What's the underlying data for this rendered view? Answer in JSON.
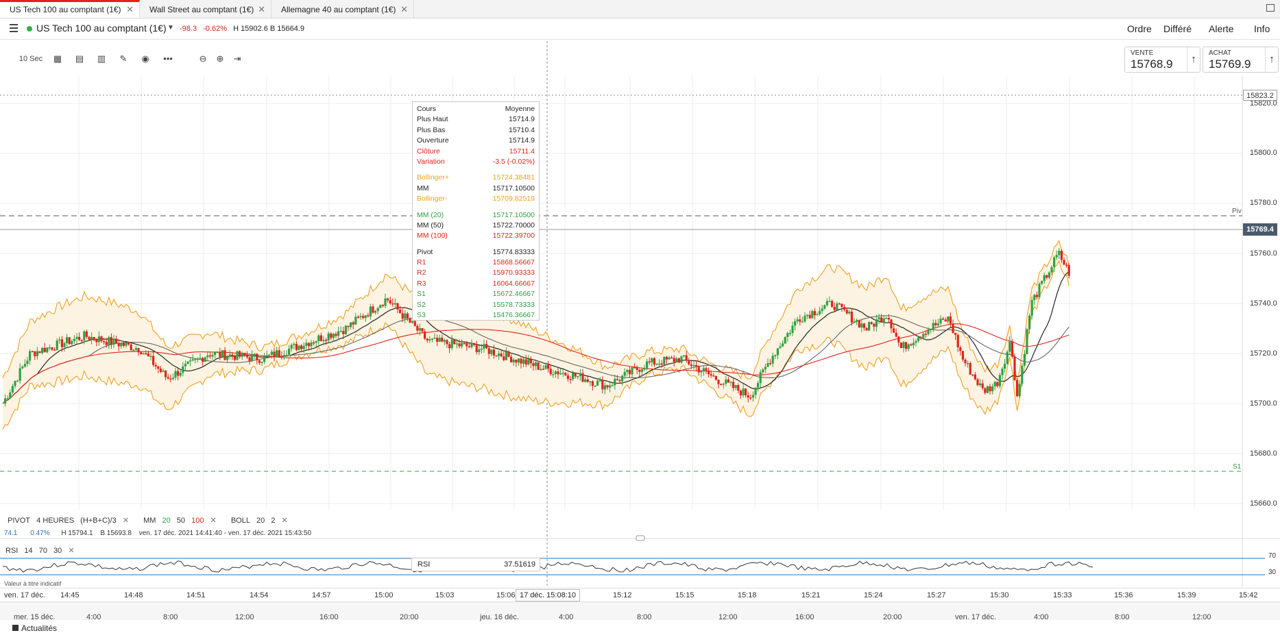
{
  "tabs": [
    {
      "label": "US Tech 100 au comptant (1€)",
      "active": true
    },
    {
      "label": "Wall Street au comptant (1€)",
      "active": false
    },
    {
      "label": "Allemagne 40 au comptant (1€)",
      "active": false
    }
  ],
  "header": {
    "instrument": "US Tech 100 au comptant (1€)",
    "change": "-98.3",
    "change_pct": "-0.62%",
    "high": "H 15902.6",
    "low": "B 15664.9",
    "menu": [
      "Ordre",
      "Différé",
      "Alerte",
      "Info"
    ]
  },
  "toolbar": {
    "interval": "10 Sec"
  },
  "trade": {
    "sell_label": "VENTE",
    "sell_price": "15768.9",
    "buy_label": "ACHAT",
    "buy_price": "15769.9"
  },
  "tooltip": {
    "head_left": "Cours",
    "head_right": "Moyenne",
    "rows": [
      {
        "k": "Plus Haut",
        "v": "15714.9"
      },
      {
        "k": "Plus Bas",
        "v": "15710.4"
      },
      {
        "k": "Ouverture",
        "v": "15714.9"
      },
      {
        "k": "Clôture",
        "v": "15711.4"
      },
      {
        "k": "Variation",
        "v": "-3.5 (-0.02%)"
      },
      {
        "k": "Bollinger+",
        "v": "15724.38481"
      },
      {
        "k": "MM",
        "v": "15717.10500"
      },
      {
        "k": "Bollinger-",
        "v": "15709.82519"
      },
      {
        "k": "MM (20)",
        "v": "15717.10500"
      },
      {
        "k": "MM (50)",
        "v": "15722.70000"
      },
      {
        "k": "MM (100)",
        "v": "15722.39700"
      },
      {
        "k": "Pivot",
        "v": "15774.83333"
      },
      {
        "k": "R1",
        "v": "15868.56667"
      },
      {
        "k": "R2",
        "v": "15970.93333"
      },
      {
        "k": "R3",
        "v": "16064.66667"
      },
      {
        "k": "S1",
        "v": "15672.46667"
      },
      {
        "k": "S2",
        "v": "15578.73333"
      },
      {
        "k": "S3",
        "v": "15476.36667"
      }
    ]
  },
  "price_axis": {
    "labels": [
      "15820.0",
      "15800.0",
      "15780.0",
      "15760.0",
      "15740.0",
      "15720.0",
      "15700.0",
      "15680.0",
      "15660.0"
    ],
    "current": "15769.4",
    "marker": "15823.2",
    "pivot_label": "Piv",
    "s1_label": "S1"
  },
  "indicators": {
    "pivot": "PIVOT",
    "pivot_period": "4 HEURES",
    "pivot_formula": "(H+B+C)/3",
    "mm": "MM",
    "mm20": "20",
    "mm50": "50",
    "mm100": "100",
    "boll": "BOLL",
    "boll_p1": "20",
    "boll_p2": "2"
  },
  "range_info": {
    "change": "74.1",
    "pct": "0.47%",
    "high": "H 15794.1",
    "low": "B 15693.8",
    "span": "ven. 17 déc. 2021 14:41:40 - ven. 17 déc. 2021 15:43:50"
  },
  "rsi": {
    "name": "RSI",
    "p1": "14",
    "p2": "70",
    "p3": "30",
    "box_label": "RSI",
    "box_value": "37.51619",
    "upper": "70",
    "lower": "30"
  },
  "value_info": "Valeur à titre indicatif",
  "time_axis": {
    "first": "ven. 17 déc.",
    "labels": [
      "14:45",
      "14:48",
      "14:51",
      "14:54",
      "14:57",
      "15:00",
      "15:03",
      "15:06",
      "15:12",
      "15:15",
      "15:18",
      "15:21",
      "15:24",
      "15:27",
      "15:30",
      "15:33",
      "15:36",
      "15:39",
      "15:42"
    ],
    "badge": "17 déc. 15:08:10"
  },
  "navigator": {
    "labels": [
      "mer. 15 déc.",
      "4:00",
      "8:00",
      "12:00",
      "16:00",
      "20:00",
      "jeu. 16 déc.",
      "4:00",
      "8:00",
      "12:00",
      "16:00",
      "20:00",
      "ven. 17 déc.",
      "4:00",
      "8:00",
      "12:00"
    ]
  },
  "footer": {
    "label": "Actualités"
  },
  "colors": {
    "up": "#2ea043",
    "down": "#e2231a",
    "boll": "#f0a020",
    "mm20": "#222222",
    "mm50": "#666666",
    "mm100": "#e2231a"
  }
}
